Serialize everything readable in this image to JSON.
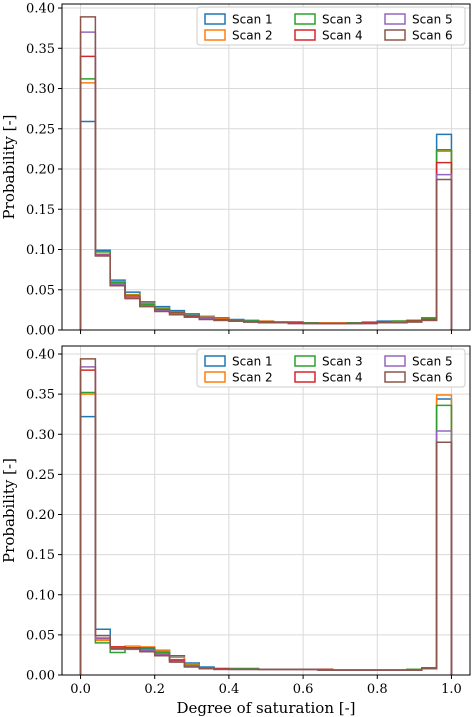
{
  "colors": {
    "Scan 1": "#1f77b4",
    "Scan 2": "#ff7f0e",
    "Scan 3": "#2ca02c",
    "Scan 4": "#d62728",
    "Scan 5": "#9467bd",
    "Scan 6": "#8c564b",
    "grid": "#d9d9d9",
    "frame": "#000000"
  },
  "chart_data": [
    {
      "type": "step-histogram",
      "title": "",
      "xlabel": "",
      "ylabel": "Probability [-]",
      "xlim": [
        -0.05,
        1.05
      ],
      "ylim": [
        0,
        0.405
      ],
      "yticks": [
        0.0,
        0.05,
        0.1,
        0.15,
        0.2,
        0.25,
        0.3,
        0.35,
        0.4
      ],
      "ytick_labels": [
        "0.00",
        "0.05",
        "0.10",
        "0.15",
        "0.20",
        "0.25",
        "0.30",
        "0.35",
        "0.40"
      ],
      "xticks": [
        0.0,
        0.2,
        0.4,
        0.6,
        0.8,
        1.0
      ],
      "xtick_labels": [],
      "grid": true,
      "legend": {
        "placement": "top-right",
        "columns": 3
      },
      "bin_edges": [
        0.0,
        0.04,
        0.08,
        0.12,
        0.16,
        0.2,
        0.24,
        0.28,
        0.32,
        0.36,
        0.4,
        0.44,
        0.48,
        0.52,
        0.56,
        0.6,
        0.64,
        0.68,
        0.72,
        0.76,
        0.8,
        0.84,
        0.88,
        0.92,
        0.96,
        1.0
      ],
      "series": [
        {
          "name": "Scan 1",
          "values": [
            0.259,
            0.099,
            0.062,
            0.047,
            0.035,
            0.029,
            0.024,
            0.02,
            0.017,
            0.015,
            0.013,
            0.012,
            0.011,
            0.01,
            0.01,
            0.009,
            0.009,
            0.009,
            0.009,
            0.01,
            0.011,
            0.011,
            0.012,
            0.015,
            0.243
          ]
        },
        {
          "name": "Scan 2",
          "values": [
            0.307,
            0.097,
            0.06,
            0.044,
            0.033,
            0.027,
            0.022,
            0.018,
            0.016,
            0.014,
            0.012,
            0.011,
            0.011,
            0.01,
            0.009,
            0.009,
            0.009,
            0.009,
            0.009,
            0.01,
            0.01,
            0.011,
            0.012,
            0.014,
            0.222
          ]
        },
        {
          "name": "Scan 3",
          "values": [
            0.312,
            0.097,
            0.059,
            0.043,
            0.032,
            0.026,
            0.022,
            0.018,
            0.015,
            0.013,
            0.012,
            0.011,
            0.01,
            0.01,
            0.009,
            0.009,
            0.008,
            0.008,
            0.009,
            0.009,
            0.01,
            0.011,
            0.012,
            0.014,
            0.224
          ]
        },
        {
          "name": "Scan 4",
          "values": [
            0.34,
            0.094,
            0.057,
            0.041,
            0.03,
            0.025,
            0.021,
            0.017,
            0.014,
            0.013,
            0.011,
            0.01,
            0.01,
            0.009,
            0.009,
            0.008,
            0.008,
            0.008,
            0.008,
            0.009,
            0.01,
            0.01,
            0.011,
            0.013,
            0.208
          ]
        },
        {
          "name": "Scan 5",
          "values": [
            0.37,
            0.093,
            0.056,
            0.04,
            0.03,
            0.024,
            0.02,
            0.016,
            0.014,
            0.012,
            0.011,
            0.01,
            0.009,
            0.009,
            0.008,
            0.008,
            0.008,
            0.008,
            0.008,
            0.008,
            0.009,
            0.01,
            0.01,
            0.012,
            0.193
          ]
        },
        {
          "name": "Scan 6",
          "values": [
            0.389,
            0.092,
            0.055,
            0.039,
            0.029,
            0.023,
            0.019,
            0.016,
            0.013,
            0.012,
            0.011,
            0.01,
            0.009,
            0.009,
            0.008,
            0.008,
            0.008,
            0.008,
            0.008,
            0.008,
            0.009,
            0.009,
            0.01,
            0.012,
            0.187
          ]
        }
      ]
    },
    {
      "type": "step-histogram",
      "title": "",
      "xlabel": "Degree of saturation [-]",
      "ylabel": "Probability [-]",
      "xlim": [
        -0.05,
        1.05
      ],
      "ylim": [
        0,
        0.41
      ],
      "yticks": [
        0.0,
        0.05,
        0.1,
        0.15,
        0.2,
        0.25,
        0.3,
        0.35,
        0.4
      ],
      "ytick_labels": [
        "0.00",
        "0.05",
        "0.10",
        "0.15",
        "0.20",
        "0.25",
        "0.30",
        "0.35",
        "0.40"
      ],
      "xticks": [
        0.0,
        0.2,
        0.4,
        0.6,
        0.8,
        1.0
      ],
      "xtick_labels": [
        "0.0",
        "0.2",
        "0.4",
        "0.6",
        "0.8",
        "1.0"
      ],
      "grid": true,
      "legend": {
        "placement": "top-right",
        "columns": 3
      },
      "bin_edges": [
        0.0,
        0.04,
        0.08,
        0.12,
        0.16,
        0.2,
        0.24,
        0.28,
        0.32,
        0.36,
        0.4,
        0.44,
        0.48,
        0.52,
        0.56,
        0.6,
        0.64,
        0.68,
        0.72,
        0.76,
        0.8,
        0.84,
        0.88,
        0.92,
        0.96,
        1.0
      ],
      "series": [
        {
          "name": "Scan 1",
          "values": [
            0.322,
            0.057,
            0.033,
            0.034,
            0.033,
            0.03,
            0.024,
            0.015,
            0.01,
            0.008,
            0.008,
            0.008,
            0.007,
            0.007,
            0.007,
            0.007,
            0.007,
            0.006,
            0.006,
            0.006,
            0.006,
            0.006,
            0.007,
            0.009,
            0.344
          ]
        },
        {
          "name": "Scan 2",
          "values": [
            0.35,
            0.043,
            0.035,
            0.036,
            0.035,
            0.031,
            0.022,
            0.013,
            0.009,
            0.008,
            0.008,
            0.008,
            0.007,
            0.007,
            0.007,
            0.007,
            0.007,
            0.006,
            0.006,
            0.006,
            0.006,
            0.006,
            0.007,
            0.008,
            0.349
          ]
        },
        {
          "name": "Scan 3",
          "values": [
            0.352,
            0.04,
            0.028,
            0.033,
            0.034,
            0.028,
            0.019,
            0.012,
            0.009,
            0.008,
            0.008,
            0.008,
            0.007,
            0.007,
            0.007,
            0.007,
            0.007,
            0.006,
            0.006,
            0.006,
            0.006,
            0.006,
            0.007,
            0.008,
            0.336
          ]
        },
        {
          "name": "Scan 4",
          "values": [
            0.38,
            0.046,
            0.035,
            0.034,
            0.031,
            0.026,
            0.018,
            0.011,
            0.008,
            0.008,
            0.007,
            0.007,
            0.007,
            0.007,
            0.007,
            0.007,
            0.007,
            0.006,
            0.006,
            0.006,
            0.006,
            0.006,
            0.006,
            0.008,
            0.29
          ]
        },
        {
          "name": "Scan 5",
          "values": [
            0.384,
            0.045,
            0.032,
            0.032,
            0.03,
            0.025,
            0.017,
            0.011,
            0.008,
            0.007,
            0.007,
            0.007,
            0.007,
            0.007,
            0.007,
            0.007,
            0.006,
            0.006,
            0.006,
            0.006,
            0.006,
            0.006,
            0.006,
            0.008,
            0.304
          ]
        },
        {
          "name": "Scan 6",
          "values": [
            0.394,
            0.049,
            0.033,
            0.033,
            0.029,
            0.024,
            0.016,
            0.01,
            0.008,
            0.007,
            0.007,
            0.007,
            0.007,
            0.007,
            0.007,
            0.007,
            0.006,
            0.006,
            0.006,
            0.006,
            0.006,
            0.006,
            0.006,
            0.008,
            0.29
          ]
        }
      ]
    }
  ]
}
